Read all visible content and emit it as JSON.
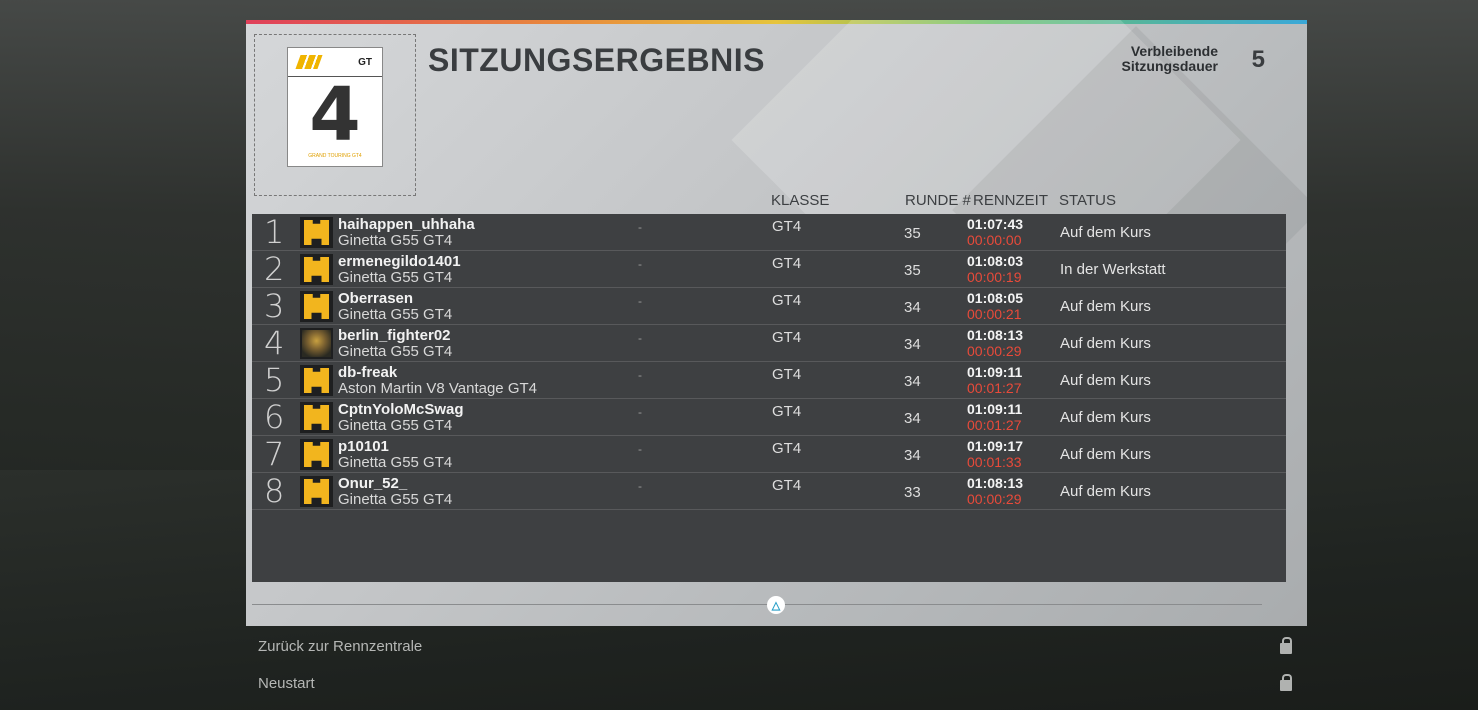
{
  "header": {
    "title": "SITZUNGSERGEBNIS",
    "remaining_label_line1": "Verbleibende",
    "remaining_label_line2": "Sitzungsdauer",
    "remaining_value": "5"
  },
  "logo": {
    "gt": "GT",
    "number": "4",
    "subtitle": "GRAND TOURING GT4"
  },
  "columns": {
    "klasse": "KLASSE",
    "runde": "RUNDE #",
    "rennzeit": "RENNZEIT",
    "status": "STATUS"
  },
  "rows": [
    {
      "pos": "1",
      "name": "haihappen_uhhaha",
      "car": "Ginetta G55 GT4",
      "sep": "-",
      "cls": "GT4",
      "lap": "35",
      "time": "01:07:43",
      "gap": "00:00:00",
      "status": "Auf dem Kurs",
      "avatar": "placeholder"
    },
    {
      "pos": "2",
      "name": "ermenegildo1401",
      "car": "Ginetta G55 GT4",
      "sep": "-",
      "cls": "GT4",
      "lap": "35",
      "time": "01:08:03",
      "gap": "00:00:19",
      "status": "In der Werkstatt",
      "avatar": "placeholder"
    },
    {
      "pos": "3",
      "name": "Oberrasen",
      "car": "Ginetta G55 GT4",
      "sep": "-",
      "cls": "GT4",
      "lap": "34",
      "time": "01:08:05",
      "gap": "00:00:21",
      "status": "Auf dem Kurs",
      "avatar": "placeholder"
    },
    {
      "pos": "4",
      "name": "berlin_fighter02",
      "car": "Ginetta G55 GT4",
      "sep": "-",
      "cls": "GT4",
      "lap": "34",
      "time": "01:08:13",
      "gap": "00:00:29",
      "status": "Auf dem Kurs",
      "avatar": "eagle"
    },
    {
      "pos": "5",
      "name": "db-freak",
      "car": "Aston Martin V8 Vantage GT4",
      "sep": "-",
      "cls": "GT4",
      "lap": "34",
      "time": "01:09:11",
      "gap": "00:01:27",
      "status": "Auf dem Kurs",
      "avatar": "placeholder"
    },
    {
      "pos": "6",
      "name": "CptnYoloMcSwag",
      "car": "Ginetta G55 GT4",
      "sep": "-",
      "cls": "GT4",
      "lap": "34",
      "time": "01:09:11",
      "gap": "00:01:27",
      "status": "Auf dem Kurs",
      "avatar": "placeholder"
    },
    {
      "pos": "7",
      "name": "p10101",
      "car": "Ginetta G55 GT4",
      "sep": "-",
      "cls": "GT4",
      "lap": "34",
      "time": "01:09:17",
      "gap": "00:01:33",
      "status": "Auf dem Kurs",
      "avatar": "placeholder"
    },
    {
      "pos": "8",
      "name": "Onur_52_",
      "car": "Ginetta G55 GT4",
      "sep": "-",
      "cls": "GT4",
      "lap": "33",
      "time": "01:08:13",
      "gap": "00:00:29",
      "status": "Auf dem Kurs",
      "avatar": "placeholder"
    }
  ],
  "footer": {
    "triangle_button": "△"
  },
  "menu": {
    "back_label": "Zurück zur Rennzentrale",
    "restart_label": "Neustart"
  },
  "colors": {
    "gap_red": "#e84a3a",
    "avatar_yellow": "#f2b51e"
  }
}
